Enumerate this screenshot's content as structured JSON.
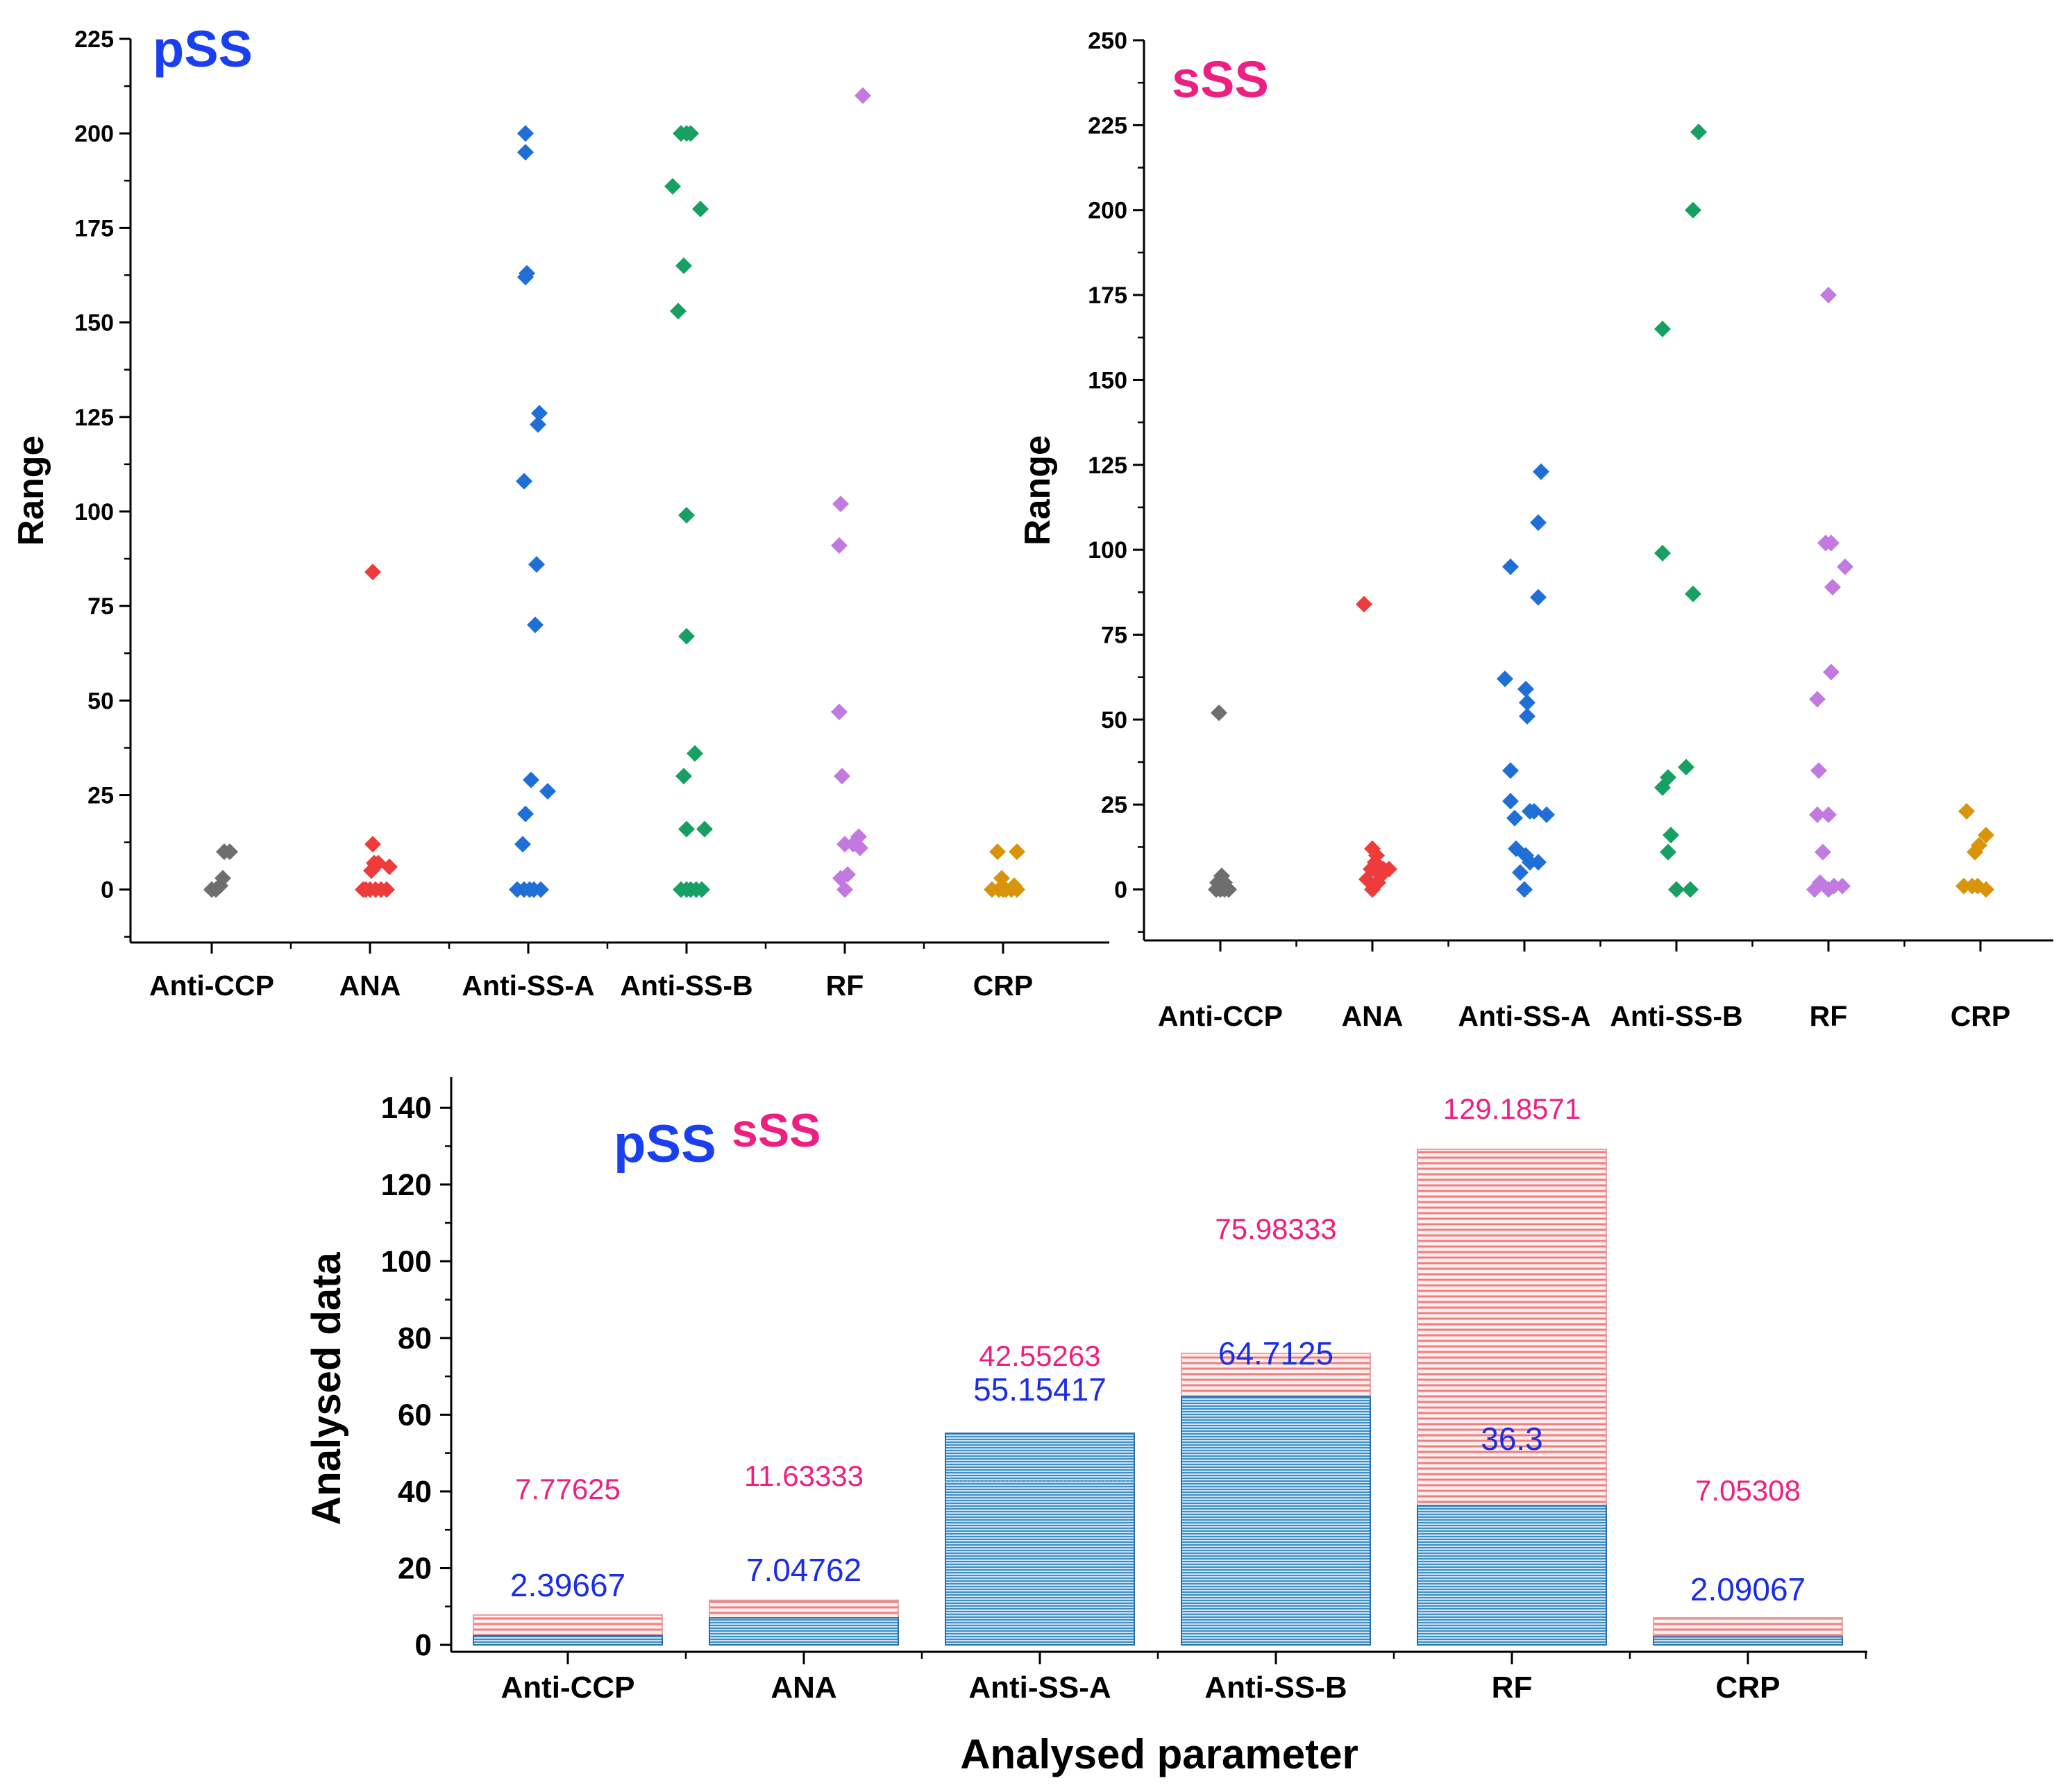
{
  "chart_data": [
    {
      "type": "scatter",
      "title": "pSS",
      "ylabel": "Range",
      "xlabel": "",
      "ylim": [
        -14,
        225
      ],
      "yticks": [
        0,
        25,
        50,
        75,
        100,
        125,
        150,
        175,
        200,
        225
      ],
      "categories": [
        "Anti-CCP",
        "ANA",
        "Anti-SS-A",
        "Anti-SS-B",
        "RF",
        "CRP"
      ],
      "series": [
        {
          "name": "Anti-CCP",
          "color": "#6e6e6e",
          "points": [
            [
              0.0,
              0
            ],
            [
              0.15,
              0
            ],
            [
              0.45,
              10
            ],
            [
              0.65,
              10
            ],
            [
              0.4,
              3
            ],
            [
              0.3,
              1
            ]
          ]
        },
        {
          "name": "ANA",
          "color": "#ee3b3b",
          "points": [
            [
              -0.15,
              0
            ],
            [
              0.0,
              0
            ],
            [
              0.2,
              0
            ],
            [
              0.4,
              0
            ],
            [
              0.6,
              0
            ],
            [
              -0.25,
              0
            ],
            [
              0.05,
              5
            ],
            [
              0.15,
              7
            ],
            [
              0.3,
              7
            ],
            [
              0.1,
              12
            ],
            [
              0.7,
              6
            ],
            [
              0.1,
              84
            ]
          ]
        },
        {
          "name": "Anti-SS-A",
          "color": "#1f6fd6",
          "points": [
            [
              -0.4,
              0
            ],
            [
              -0.15,
              0
            ],
            [
              0.05,
              0
            ],
            [
              0.2,
              0
            ],
            [
              0.45,
              0
            ],
            [
              -0.2,
              12
            ],
            [
              -0.1,
              20
            ],
            [
              0.7,
              26
            ],
            [
              0.1,
              29
            ],
            [
              0.25,
              70
            ],
            [
              0.3,
              86
            ],
            [
              -0.15,
              108
            ],
            [
              0.35,
              123
            ],
            [
              0.4,
              126
            ],
            [
              -0.1,
              162
            ],
            [
              -0.05,
              163
            ],
            [
              -0.1,
              195
            ],
            [
              -0.1,
              200
            ]
          ]
        },
        {
          "name": "Anti-SS-B",
          "color": "#16a062",
          "points": [
            [
              -0.2,
              0
            ],
            [
              0.0,
              0
            ],
            [
              0.15,
              0
            ],
            [
              0.35,
              0
            ],
            [
              0.55,
              0
            ],
            [
              0.65,
              16
            ],
            [
              0.0,
              16
            ],
            [
              -0.1,
              30
            ],
            [
              0.3,
              36
            ],
            [
              0.0,
              67
            ],
            [
              0.0,
              99
            ],
            [
              -0.3,
              153
            ],
            [
              -0.1,
              165
            ],
            [
              0.5,
              180
            ],
            [
              -0.5,
              186
            ],
            [
              -0.2,
              200
            ],
            [
              0.0,
              200
            ],
            [
              0.15,
              200
            ]
          ]
        },
        {
          "name": "RF",
          "color": "#c27ae0",
          "points": [
            [
              0.0,
              0
            ],
            [
              -0.15,
              3
            ],
            [
              0.1,
              4
            ],
            [
              0.3,
              12
            ],
            [
              0.55,
              11
            ],
            [
              0.5,
              14
            ],
            [
              0.0,
              12
            ],
            [
              -0.1,
              30
            ],
            [
              -0.2,
              47
            ],
            [
              -0.2,
              91
            ],
            [
              -0.15,
              102
            ],
            [
              0.65,
              210
            ]
          ]
        },
        {
          "name": "CRP",
          "color": "#d9940c",
          "points": [
            [
              -0.4,
              0
            ],
            [
              -0.15,
              0
            ],
            [
              0.0,
              0
            ],
            [
              0.3,
              0
            ],
            [
              0.5,
              0
            ],
            [
              -0.05,
              3
            ],
            [
              0.4,
              1
            ],
            [
              0.1,
              0
            ],
            [
              -0.2,
              10
            ],
            [
              0.5,
              10
            ]
          ]
        }
      ]
    },
    {
      "type": "scatter",
      "title": "sSS",
      "ylabel": "Range",
      "xlabel": "",
      "ylim": [
        -15,
        250
      ],
      "yticks": [
        0,
        25,
        50,
        75,
        100,
        125,
        150,
        175,
        200,
        225,
        250
      ],
      "categories": [
        "Anti-CCP",
        "ANA",
        "Anti-SS-A",
        "Anti-SS-B",
        "RF",
        "CRP"
      ],
      "series": [
        {
          "name": "Anti-CCP",
          "color": "#6e6e6e",
          "points": [
            [
              -0.15,
              0
            ],
            [
              0.0,
              0
            ],
            [
              0.15,
              0
            ],
            [
              0.3,
              0
            ],
            [
              -0.1,
              2
            ],
            [
              0.05,
              4
            ],
            [
              0.15,
              2
            ],
            [
              -0.05,
              52
            ]
          ]
        },
        {
          "name": "ANA",
          "color": "#ee3b3b",
          "points": [
            [
              0.0,
              0
            ],
            [
              -0.2,
              3
            ],
            [
              0.2,
              2
            ],
            [
              0.4,
              6
            ],
            [
              0.6,
              6
            ],
            [
              0.1,
              8
            ],
            [
              0.3,
              4
            ],
            [
              -0.05,
              6
            ],
            [
              0.15,
              10
            ],
            [
              0.0,
              12
            ],
            [
              -0.3,
              84
            ]
          ]
        },
        {
          "name": "Anti-SS-A",
          "color": "#1f6fd6",
          "points": [
            [
              0.0,
              0
            ],
            [
              -0.15,
              5
            ],
            [
              0.2,
              8
            ],
            [
              0.5,
              8
            ],
            [
              0.05,
              10
            ],
            [
              -0.3,
              12
            ],
            [
              -0.5,
              26
            ],
            [
              -0.35,
              21
            ],
            [
              0.2,
              23
            ],
            [
              0.8,
              22
            ],
            [
              0.35,
              23
            ],
            [
              -0.5,
              35
            ],
            [
              0.1,
              51
            ],
            [
              0.1,
              55
            ],
            [
              0.05,
              59
            ],
            [
              -0.7,
              62
            ],
            [
              0.5,
              86
            ],
            [
              -0.5,
              95
            ],
            [
              0.5,
              108
            ],
            [
              0.6,
              123
            ]
          ]
        },
        {
          "name": "Anti-SS-B",
          "color": "#16a062",
          "points": [
            [
              0.0,
              0
            ],
            [
              0.5,
              0
            ],
            [
              -0.3,
              11
            ],
            [
              -0.2,
              16
            ],
            [
              -0.5,
              30
            ],
            [
              -0.3,
              33
            ],
            [
              0.35,
              36
            ],
            [
              0.6,
              87
            ],
            [
              -0.5,
              99
            ],
            [
              -0.5,
              165
            ],
            [
              0.6,
              200
            ],
            [
              0.8,
              223
            ]
          ]
        },
        {
          "name": "RF",
          "color": "#c27ae0",
          "points": [
            [
              -0.5,
              0
            ],
            [
              0.0,
              0
            ],
            [
              0.2,
              1
            ],
            [
              0.5,
              1
            ],
            [
              -0.3,
              2
            ],
            [
              -0.2,
              11
            ],
            [
              -0.4,
              22
            ],
            [
              0.0,
              22
            ],
            [
              -0.35,
              35
            ],
            [
              -0.4,
              56
            ],
            [
              0.1,
              64
            ],
            [
              0.15,
              89
            ],
            [
              0.6,
              95
            ],
            [
              -0.1,
              102
            ],
            [
              0.1,
              102
            ],
            [
              0.0,
              175
            ]
          ]
        },
        {
          "name": "CRP",
          "color": "#d9940c",
          "points": [
            [
              -0.6,
              1
            ],
            [
              -0.3,
              1
            ],
            [
              -0.1,
              1
            ],
            [
              0.2,
              0
            ],
            [
              -0.2,
              11
            ],
            [
              -0.05,
              13
            ],
            [
              0.2,
              16
            ],
            [
              -0.5,
              23
            ]
          ]
        }
      ]
    },
    {
      "type": "bar",
      "title": "",
      "ylabel": "Analysed data",
      "xlabel": "Analysed parameter",
      "ylim": [
        0,
        148
      ],
      "yticks": [
        0,
        20,
        40,
        60,
        80,
        100,
        120,
        140
      ],
      "categories": [
        "Anti-CCP",
        "ANA",
        "Anti-SS-A",
        "Anti-SS-B",
        "RF",
        "CRP"
      ],
      "legend": [
        {
          "label": "pSS",
          "color": "#1a3ff0"
        },
        {
          "label": "sSS",
          "color": "#ee1f82"
        }
      ],
      "series": [
        {
          "name": "pSS",
          "color": "#1a2ee6",
          "fill": "#3c8fc9",
          "values": [
            2.39667,
            7.04762,
            55.15417,
            64.7125,
            36.3,
            2.09067
          ],
          "labels": [
            "2.39667",
            "7.04762",
            "55.15417",
            "64.7125",
            "36.3",
            "2.09067"
          ]
        },
        {
          "name": "sSS",
          "color": "#ee1f82",
          "fill": "#f27d7d",
          "values": [
            7.77625,
            11.63333,
            42.55263,
            75.98333,
            129.18571,
            7.05308
          ],
          "labels": [
            "7.77625",
            "11.63333",
            "42.55263",
            "75.98333",
            "129.18571",
            "7.05308"
          ]
        }
      ]
    }
  ]
}
